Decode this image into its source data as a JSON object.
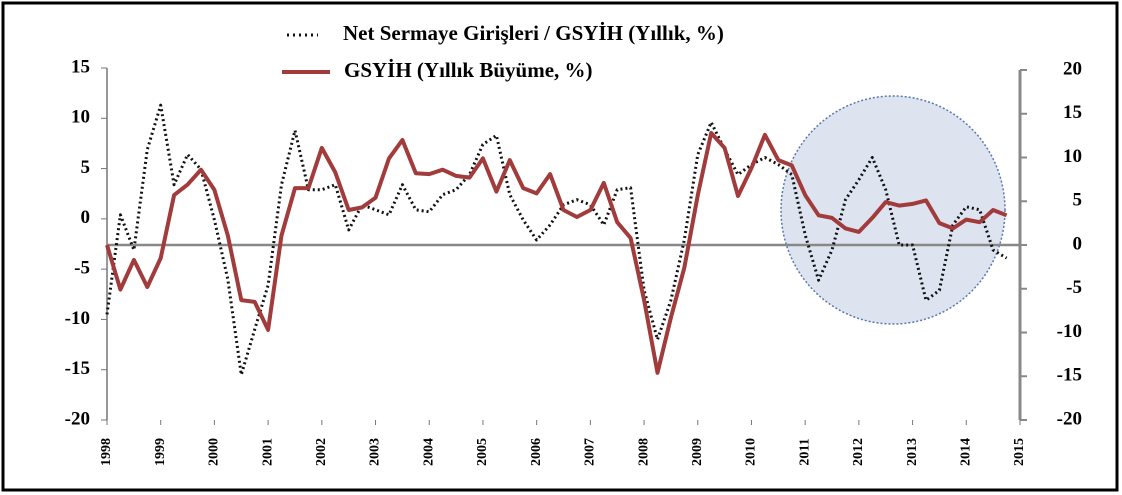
{
  "chart_data": {
    "type": "line",
    "x": [
      1998,
      1998.25,
      1998.5,
      1998.75,
      1999,
      1999.25,
      1999.5,
      1999.75,
      2000,
      2000.25,
      2000.5,
      2000.75,
      2001,
      2001.25,
      2001.5,
      2001.75,
      2002,
      2002.25,
      2002.5,
      2002.75,
      2003,
      2003.25,
      2003.5,
      2003.75,
      2004,
      2004.25,
      2004.5,
      2004.75,
      2005,
      2005.25,
      2005.5,
      2005.75,
      2006,
      2006.25,
      2006.5,
      2006.75,
      2007,
      2007.25,
      2007.5,
      2007.75,
      2008,
      2008.25,
      2008.5,
      2008.75,
      2009,
      2009.25,
      2009.5,
      2009.75,
      2010,
      2010.25,
      2010.5,
      2010.75,
      2011,
      2011.25,
      2011.5,
      2011.75,
      2012,
      2012.25,
      2012.5,
      2012.75,
      2013,
      2013.25,
      2013.5,
      2013.75,
      2014,
      2014.25,
      2014.5,
      2014.75
    ],
    "series": [
      {
        "name": "Net Sermaye Girişleri / GSYİH (Yıllık, %)",
        "color": "#111111",
        "dashed": true,
        "values": [
          -9.5,
          0.4,
          -3.1,
          6.9,
          11.3,
          3.4,
          6.4,
          4.9,
          -0.1,
          -6,
          -15.5,
          -11,
          -6.6,
          3.4,
          8.8,
          2.9,
          2.9,
          3.4,
          -1.1,
          1.4,
          0.9,
          0.4,
          3.4,
          0.9,
          0.7,
          2.4,
          2.9,
          4.4,
          7.4,
          8.3,
          2.4,
          -0.1,
          -2.1,
          -0.6,
          1.4,
          1.9,
          1.4,
          -0.6,
          2.9,
          3.1,
          -7.1,
          -12,
          -8.1,
          -2.1,
          6.4,
          9.6,
          6.9,
          4.4,
          5.4,
          6.1,
          5.4,
          4.4,
          -1.6,
          -6.1,
          -3.1,
          1.9,
          3.9,
          6.1,
          2.9,
          -2.6,
          -2.6,
          -8.1,
          -7.1,
          -0.6,
          1.2,
          0.9,
          -3.1,
          -3.9
        ]
      },
      {
        "name": "GSYİH (Yıllık Büyüme, %)",
        "color": "#a23b3b",
        "axis": "y2",
        "values": [
          0,
          -5.1,
          -1.7,
          -4.8,
          -1.5,
          5.7,
          6.9,
          8.6,
          6.3,
          1.1,
          -6.3,
          -6.5,
          -9.7,
          1.1,
          6.5,
          6.5,
          11.1,
          8.3,
          4,
          4.3,
          5.4,
          9.9,
          12,
          8.2,
          8.1,
          8.6,
          7.9,
          7.7,
          9.9,
          6.1,
          9.7,
          6.5,
          5.9,
          8.1,
          4,
          3.2,
          4,
          7.1,
          2.6,
          0.8,
          -6.3,
          -14.6,
          -8.3,
          -2.6,
          5.7,
          12.8,
          11.1,
          5.6,
          8.8,
          12.6,
          9.7,
          9.1,
          5.7,
          3.4,
          3.1,
          1.9,
          1.5,
          3.1,
          4.9,
          4.5,
          4.7,
          5.1,
          2.5,
          1.9,
          2.9,
          2.6,
          4,
          3.4
        ]
      }
    ],
    "xlim": [
      1998,
      2015
    ],
    "xticks": [
      1998,
      1999,
      2000,
      2001,
      2002,
      2003,
      2004,
      2005,
      2006,
      2007,
      2008,
      2009,
      2010,
      2011,
      2012,
      2013,
      2014,
      2015
    ],
    "ylim": [
      -20,
      15
    ],
    "yticks": [
      -20,
      -15,
      -10,
      -5,
      0,
      5,
      10,
      15
    ],
    "y2lim": [
      -20,
      20
    ],
    "y2ticks": [
      -20,
      -15,
      -10,
      -5,
      0,
      5,
      10,
      15,
      20
    ]
  }
}
